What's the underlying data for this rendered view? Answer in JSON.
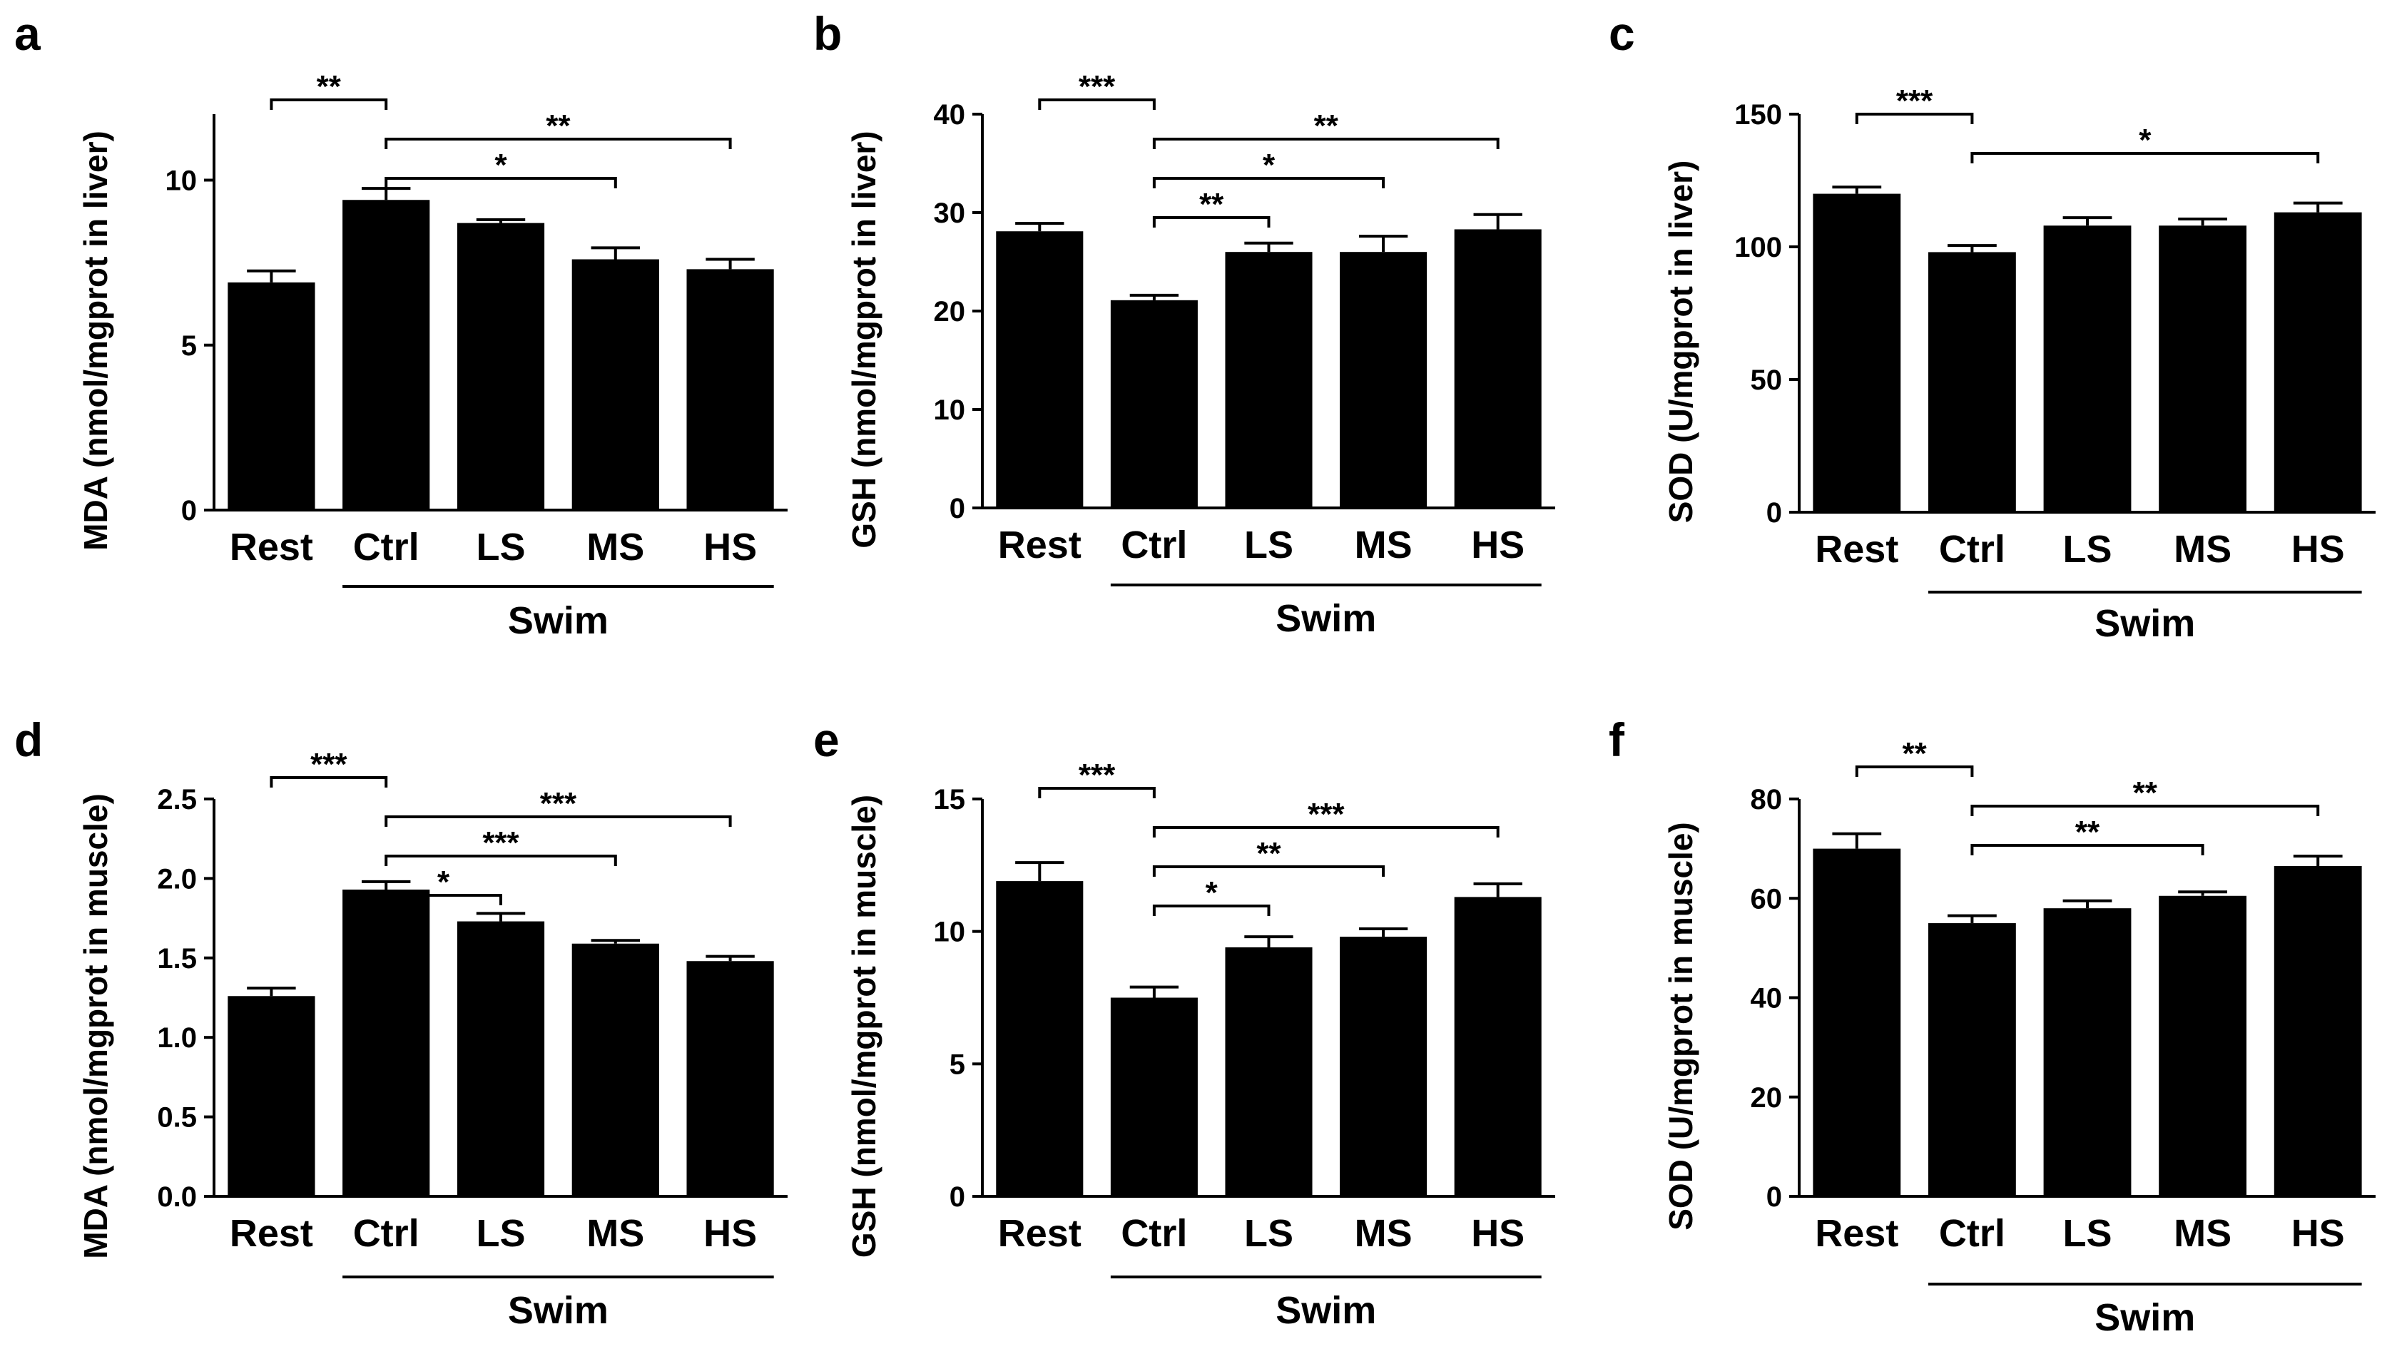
{
  "figure": {
    "group_label": "Swim"
  },
  "chart_data": [
    {
      "panel": "a",
      "type": "bar",
      "categories": [
        "Rest",
        "Ctrl",
        "LS",
        "MS",
        "HS"
      ],
      "values": [
        6.9,
        9.4,
        8.7,
        7.6,
        7.3
      ],
      "errors": [
        0.35,
        0.35,
        0.1,
        0.35,
        0.3
      ],
      "ylabel": "MDA (nmol/mgprot in liver)",
      "ylim": [
        0,
        12
      ],
      "yticks": [
        0,
        5,
        10
      ],
      "ytick_labels": [
        "0",
        "5",
        "10"
      ],
      "group": {
        "label": "Swim",
        "from": 1,
        "to": 4
      },
      "significance": [
        {
          "from": 0,
          "to": 1,
          "label": "**"
        },
        {
          "from": 1,
          "to": 4,
          "label": "**"
        },
        {
          "from": 1,
          "to": 3,
          "label": "*"
        }
      ]
    },
    {
      "panel": "b",
      "type": "bar",
      "categories": [
        "Rest",
        "Ctrl",
        "LS",
        "MS",
        "HS"
      ],
      "values": [
        28.1,
        21.1,
        26.0,
        26.0,
        28.3
      ],
      "errors": [
        0.8,
        0.5,
        0.9,
        1.6,
        1.5
      ],
      "ylabel": "GSH (nmol/mgprot in liver)",
      "ylim": [
        0,
        40
      ],
      "yticks": [
        0,
        10,
        20,
        30,
        40
      ],
      "ytick_labels": [
        "0",
        "10",
        "20",
        "30",
        "40"
      ],
      "group": {
        "label": "Swim",
        "from": 1,
        "to": 4
      },
      "significance": [
        {
          "from": 0,
          "to": 1,
          "label": "***"
        },
        {
          "from": 1,
          "to": 4,
          "label": "**"
        },
        {
          "from": 1,
          "to": 3,
          "label": "*"
        },
        {
          "from": 1,
          "to": 2,
          "label": "**"
        }
      ]
    },
    {
      "panel": "c",
      "type": "bar",
      "categories": [
        "Rest",
        "Ctrl",
        "LS",
        "MS",
        "HS"
      ],
      "values": [
        120,
        98,
        108,
        108,
        113
      ],
      "errors": [
        2.5,
        2.5,
        3,
        2.5,
        3.5
      ],
      "ylabel": "SOD (U/mgprot in liver)",
      "ylim": [
        0,
        150
      ],
      "yticks": [
        0,
        50,
        100,
        150
      ],
      "ytick_labels": [
        "0",
        "50",
        "100",
        "150"
      ],
      "group": {
        "label": "Swim",
        "from": 1,
        "to": 4
      },
      "significance": [
        {
          "from": 0,
          "to": 1,
          "label": "***"
        },
        {
          "from": 1,
          "to": 4,
          "label": "*"
        }
      ]
    },
    {
      "panel": "d",
      "type": "bar",
      "categories": [
        "Rest",
        "Ctrl",
        "LS",
        "MS",
        "HS"
      ],
      "values": [
        1.26,
        1.93,
        1.73,
        1.59,
        1.48
      ],
      "errors": [
        0.05,
        0.05,
        0.05,
        0.02,
        0.03
      ],
      "ylabel": "MDA (nmol/mgprot in muscle)",
      "ylim": [
        0,
        2.5
      ],
      "yticks": [
        0,
        0.5,
        1.0,
        1.5,
        2.0,
        2.5
      ],
      "ytick_labels": [
        "0.0",
        "0.5",
        "1.0",
        "1.5",
        "2.0",
        "2.5"
      ],
      "group": {
        "label": "Swim",
        "from": 1,
        "to": 4
      },
      "significance": [
        {
          "from": 0,
          "to": 1,
          "label": "***"
        },
        {
          "from": 1,
          "to": 4,
          "label": "***"
        },
        {
          "from": 1,
          "to": 3,
          "label": "***"
        },
        {
          "from": 1,
          "to": 2,
          "label": "*"
        }
      ]
    },
    {
      "panel": "e",
      "type": "bar",
      "categories": [
        "Rest",
        "Ctrl",
        "LS",
        "MS",
        "HS"
      ],
      "values": [
        11.9,
        7.5,
        9.4,
        9.8,
        11.3
      ],
      "errors": [
        0.7,
        0.4,
        0.4,
        0.3,
        0.5
      ],
      "ylabel": "GSH (nmol/mgprot in muscle)",
      "ylim": [
        0,
        15
      ],
      "yticks": [
        0,
        5,
        10,
        15
      ],
      "ytick_labels": [
        "0",
        "5",
        "10",
        "15"
      ],
      "group": {
        "label": "Swim",
        "from": 1,
        "to": 4
      },
      "significance": [
        {
          "from": 0,
          "to": 1,
          "label": "***"
        },
        {
          "from": 1,
          "to": 4,
          "label": "***"
        },
        {
          "from": 1,
          "to": 3,
          "label": "**"
        },
        {
          "from": 1,
          "to": 2,
          "label": "*"
        }
      ]
    },
    {
      "panel": "f",
      "type": "bar",
      "categories": [
        "Rest",
        "Ctrl",
        "LS",
        "MS",
        "HS"
      ],
      "values": [
        70,
        55,
        58,
        60.5,
        66.5
      ],
      "errors": [
        3,
        1.5,
        1.5,
        0.8,
        2
      ],
      "ylabel": "SOD (U/mgprot in muscle)",
      "ylim": [
        0,
        80
      ],
      "yticks": [
        0,
        20,
        40,
        60,
        80
      ],
      "ytick_labels": [
        "0",
        "20",
        "40",
        "60",
        "80"
      ],
      "group": {
        "label": "Swim",
        "from": 1,
        "to": 4
      },
      "significance": [
        {
          "from": 0,
          "to": 1,
          "label": "**"
        },
        {
          "from": 1,
          "to": 4,
          "label": "**"
        },
        {
          "from": 1,
          "to": 3,
          "label": "**"
        }
      ]
    }
  ]
}
